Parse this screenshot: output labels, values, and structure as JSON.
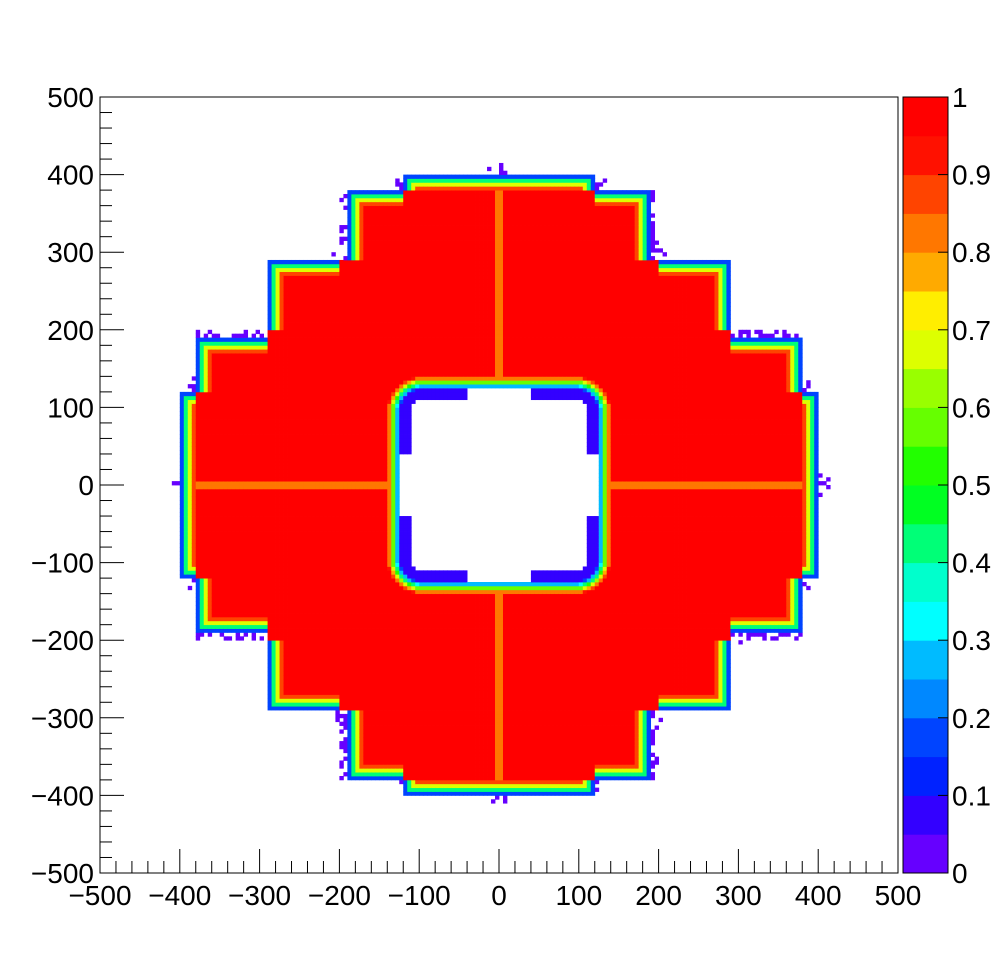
{
  "chart_data": {
    "type": "heatmap",
    "title": "",
    "xlabel": "",
    "ylabel": "",
    "xlim": [
      -500,
      500
    ],
    "ylim": [
      -500,
      500
    ],
    "x_ticks": [
      -500,
      -400,
      -300,
      -200,
      -100,
      0,
      100,
      200,
      300,
      400,
      500
    ],
    "y_ticks": [
      -500,
      -400,
      -300,
      -200,
      -100,
      0,
      100,
      200,
      300,
      400,
      500
    ],
    "x_tick_labels": [
      "−500",
      "−400",
      "−300",
      "−200",
      "−100",
      "0",
      "100",
      "200",
      "300",
      "400",
      "500"
    ],
    "y_tick_labels": [
      "−500",
      "−400",
      "−300",
      "−200",
      "−100",
      "0",
      "100",
      "200",
      "300",
      "400",
      "500"
    ],
    "colorbar": {
      "range": [
        0,
        1
      ],
      "ticks": [
        0,
        0.1,
        0.2,
        0.3,
        0.4,
        0.5,
        0.6,
        0.7,
        0.8,
        0.9,
        1
      ],
      "tick_labels": [
        "0",
        "0.1",
        "0.2",
        "0.3",
        "0.4",
        "0.5",
        "0.6",
        "0.7",
        "0.8",
        "0.9",
        "1"
      ],
      "colors": [
        "#6600ff",
        "#3300ff",
        "#0022ff",
        "#0044ff",
        "#0088ff",
        "#00bbff",
        "#00ffff",
        "#00ffcc",
        "#00ff77",
        "#00ff22",
        "#22ff00",
        "#66ff00",
        "#99ff00",
        "#ddff00",
        "#ffee00",
        "#ffaa00",
        "#ff7700",
        "#ff4400",
        "#ff1100",
        "#ff0000"
      ]
    },
    "structure": {
      "description_values": "efficiency map: full (1.0) over stepped square annulus, falling to 0 at outer and inner edges",
      "outer_boundary_steps": [
        [
          0,
          400
        ],
        [
          120,
          400
        ],
        [
          120,
          380
        ],
        [
          200,
          380
        ],
        [
          200,
          290
        ],
        [
          290,
          290
        ],
        [
          290,
          190
        ],
        [
          380,
          190
        ],
        [
          380,
          120
        ],
        [
          400,
          120
        ],
        [
          400,
          0
        ]
      ],
      "inner_radius": 120,
      "inner_square_half_width": 125,
      "edge_width": 20,
      "center_lines": {
        "x": 0,
        "y": 0,
        "value": 0.8
      }
    }
  }
}
